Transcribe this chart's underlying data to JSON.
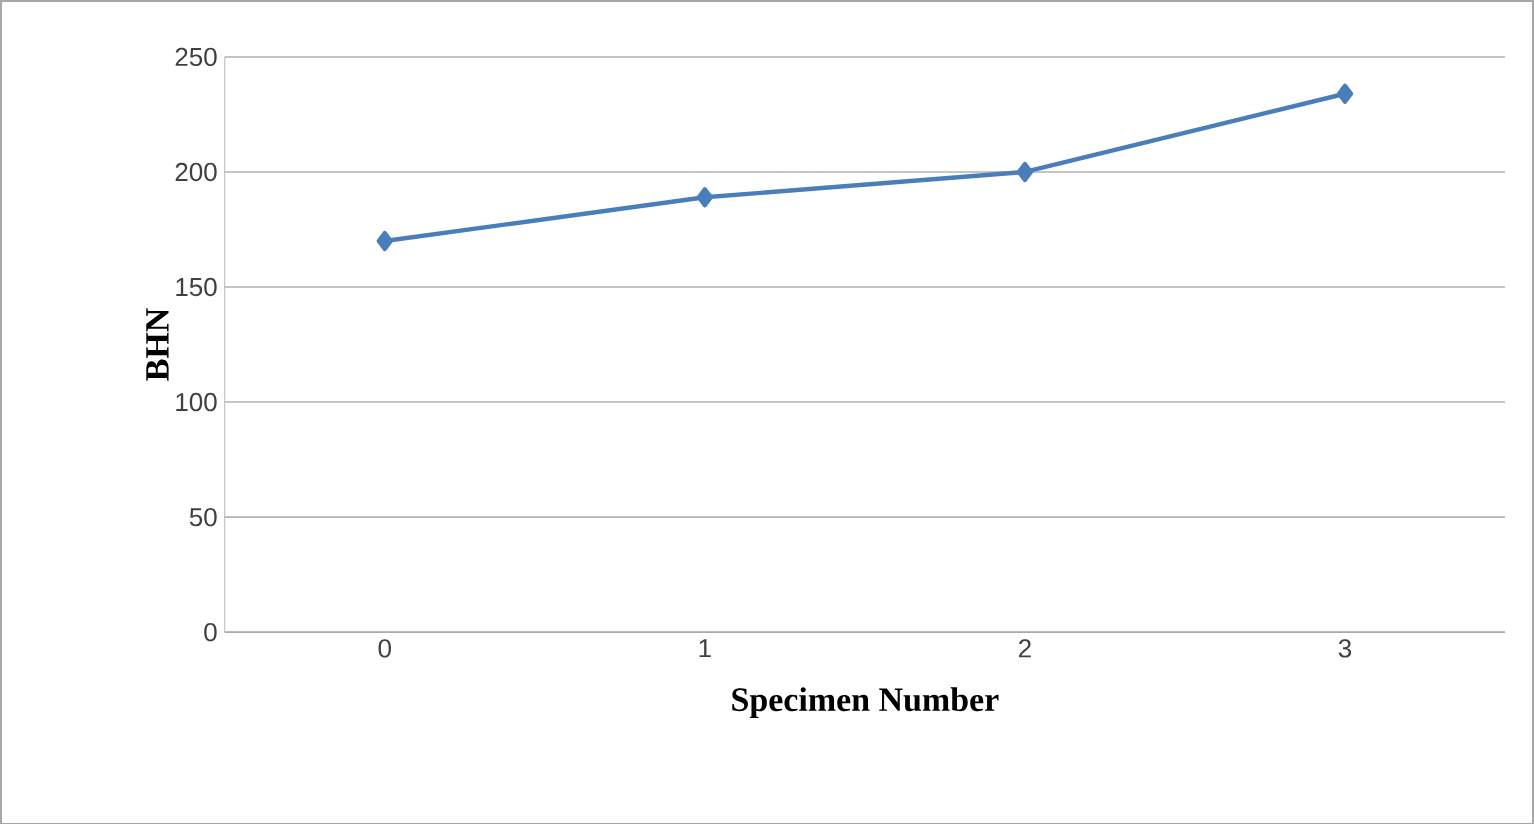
{
  "chart_data": {
    "type": "line",
    "xlabel": "Specimen Number",
    "ylabel": "BHN",
    "categories": [
      "0",
      "1",
      "2",
      "3"
    ],
    "series": [
      {
        "color": "#4a7ebb",
        "values": [
          170,
          189,
          200,
          234
        ]
      }
    ],
    "ylim": [
      0,
      250
    ],
    "yticks": [
      0,
      50,
      100,
      150,
      200,
      250
    ],
    "grid": "y",
    "marker": "diamond",
    "line_style": "solid"
  }
}
